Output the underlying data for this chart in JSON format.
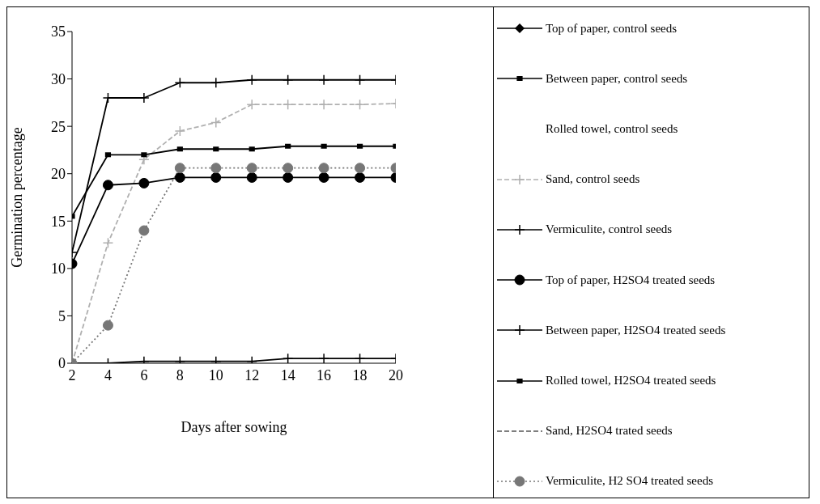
{
  "chart_data": {
    "type": "line",
    "xlabel": "Days after sowing",
    "ylabel": "Germination percentage",
    "x": [
      2,
      4,
      6,
      8,
      10,
      12,
      14,
      16,
      18,
      20
    ],
    "xlim": [
      2,
      20
    ],
    "xticks": [
      2,
      4,
      6,
      8,
      10,
      12,
      14,
      16,
      18,
      20
    ],
    "ylim": [
      0,
      35
    ],
    "yticks": [
      0,
      5,
      10,
      15,
      20,
      25,
      30,
      35
    ],
    "grid": false,
    "legend": "right",
    "series": [
      {
        "name": "Top of paper, control seeds",
        "color": "#000000",
        "marker": "diamond",
        "line_style": "solid",
        "values": [
          null,
          null,
          null,
          null,
          null,
          null,
          null,
          null,
          null,
          null
        ]
      },
      {
        "name": "Between paper, control seeds",
        "color": "#000000",
        "marker": "square",
        "line_style": "solid",
        "values": [
          null,
          null,
          null,
          null,
          null,
          null,
          null,
          null,
          null,
          null
        ]
      },
      {
        "name": "Rolled towel, control seeds",
        "marker": "none",
        "line_style": "solid",
        "values": [
          null,
          null,
          null,
          null,
          null,
          null,
          null,
          null,
          null,
          null
        ]
      },
      {
        "name": "Sand, control seeds",
        "color": "#b0b0b0",
        "marker": "cross",
        "line_style": "dashed",
        "values": [
          0,
          12.7,
          21.5,
          24.5,
          25.4,
          27.3,
          27.3,
          27.3,
          27.3,
          27.4
        ]
      },
      {
        "name": "Vermiculite, control seeds",
        "color": "#000000",
        "marker": "cross",
        "line_style": "solid",
        "values": [
          0,
          0,
          0.2,
          0.2,
          0.2,
          0.2,
          0.5,
          0.5,
          0.5,
          0.5
        ]
      },
      {
        "name": "Top of paper, H2SO4 treated seeds",
        "color": "#000000",
        "marker": "circle",
        "line_style": "solid",
        "values": [
          10.5,
          18.8,
          19,
          19.6,
          19.6,
          19.6,
          19.6,
          19.6,
          19.6,
          19.6
        ]
      },
      {
        "name": "Between paper, H2SO4 treated seeds",
        "color": "#000000",
        "marker": "cross",
        "line_style": "solid",
        "values": [
          11.7,
          28,
          28,
          29.6,
          29.6,
          29.9,
          29.9,
          29.9,
          29.9,
          29.9
        ]
      },
      {
        "name": "Rolled towel,  H2SO4 treated seeds",
        "color": "#000000",
        "marker": "square",
        "line_style": "solid",
        "values": [
          15.5,
          22,
          22,
          22.6,
          22.6,
          22.6,
          22.9,
          22.9,
          22.9,
          22.9
        ]
      },
      {
        "name": "Sand,  H2SO4 trated seeds",
        "color": "#555555",
        "marker": "none",
        "line_style": "dashed",
        "values": [
          null,
          null,
          null,
          null,
          null,
          null,
          null,
          null,
          null,
          null
        ]
      },
      {
        "name": "Vermiculite,  H2 SO4 treated seeds",
        "color": "#777777",
        "marker": "circle",
        "line_style": "dotted",
        "values": [
          0,
          4,
          14,
          20.6,
          20.6,
          20.6,
          20.6,
          20.6,
          20.6,
          20.6
        ]
      }
    ]
  }
}
